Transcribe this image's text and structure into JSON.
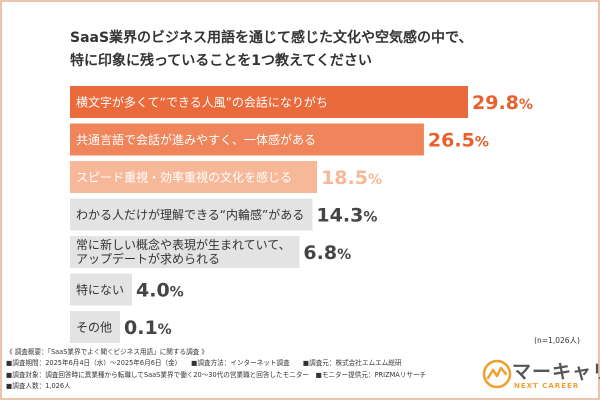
{
  "title_lines": [
    "SaaS業界のビジネス用語を通じて感じた文化や空気感の中で、",
    "特に印象に残っていることを1つ教えてください"
  ],
  "sample_note": "(n=1,026人)",
  "colors": {
    "bar1": "#ea6a3c",
    "bar2": "#f0855b",
    "bar3": "#f6b898",
    "gray": "#e3e3e3",
    "value_hi": "#e8602c",
    "value_mid": "#f2956a",
    "value_low": "#f6b896",
    "value_dark": "#444444"
  },
  "chart_data": {
    "type": "bar",
    "orientation": "horizontal",
    "unit": "%",
    "categories": [
      [
        "横文字が多くて“できる人風”の会話になりがち"
      ],
      [
        "共通言語で会話が進みやすく、一体感がある"
      ],
      [
        "スピード重視・効率重視の文化を感じる"
      ],
      [
        "わかる人だけが理解できる“内輪感”がある"
      ],
      [
        "常に新しい概念や表現が生まれていて、",
        "アップデートが求められる"
      ],
      [
        "特にない"
      ],
      [
        "その他"
      ]
    ],
    "values": [
      29.8,
      26.5,
      18.5,
      14.3,
      6.8,
      4.0,
      0.1
    ],
    "value_labels": [
      "29.8%",
      "26.5%",
      "18.5%",
      "14.3%",
      "6.8%",
      "4.0%",
      "0.1%"
    ],
    "xlim": [
      0,
      29.8
    ]
  },
  "footer_lines": [
    "《 調査概要：「SaaS業界でよく聞くビジネス用語」に関する調査 》",
    "■調査期間：2025年6月4日（水）〜2025年6月6日（金）　　■調査方法：インターネット調査　　■調査元：株式会社エムエム総研",
    "■調査対象：調査回答時に異業種から転職してSaaS業界で働く20〜30代の営業職と回答したモニター　■モニター提供元：PRIZMAリサーチ",
    "■調査人数：1,026人"
  ],
  "logo": {
    "word": "マーキャリ",
    "sub": "NEXT CAREER",
    "icon": "logo-mark-icon"
  }
}
